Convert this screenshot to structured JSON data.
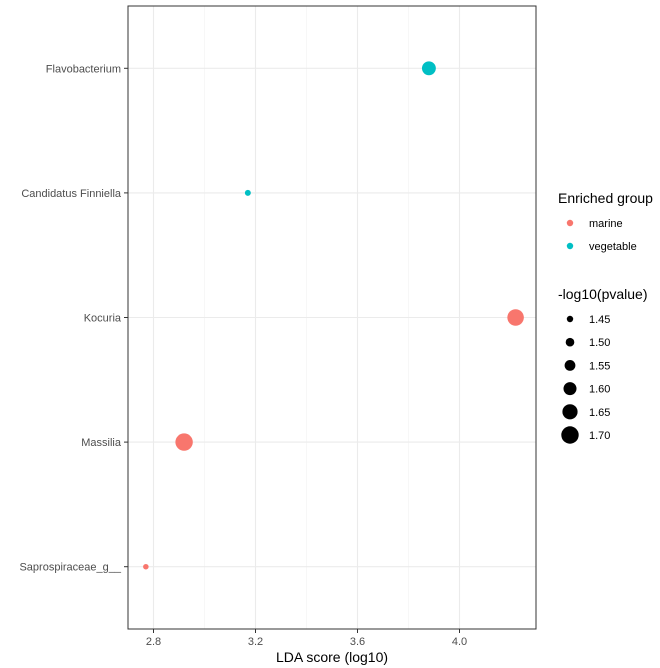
{
  "chart_data": {
    "type": "scatter",
    "title": "",
    "xlabel": "LDA score (log10)",
    "ylabel": "",
    "xlim": [
      2.7,
      4.3
    ],
    "xticks": [
      2.8,
      3.2,
      3.6,
      4.0
    ],
    "xtick_labels": [
      "2.8",
      "3.2",
      "3.6",
      "4.0"
    ],
    "categories": [
      "Flavobacterium",
      "Candidatus Finniella",
      "Kocuria",
      "Massilia",
      "Saprospiraceae_g__"
    ],
    "grid": true,
    "legend_placement": "right",
    "points": [
      {
        "taxon": "Flavobacterium",
        "lda": 3.88,
        "neglog10p": 1.62,
        "group": "vegetable"
      },
      {
        "taxon": "Candidatus Finniella",
        "lda": 3.17,
        "neglog10p": 1.44,
        "group": "vegetable"
      },
      {
        "taxon": "Kocuria",
        "lda": 4.22,
        "neglog10p": 1.68,
        "group": "marine"
      },
      {
        "taxon": "Massilia",
        "lda": 2.92,
        "neglog10p": 1.7,
        "group": "marine"
      },
      {
        "taxon": "Saprospiraceae_g__",
        "lda": 2.77,
        "neglog10p": 1.43,
        "group": "marine"
      }
    ],
    "legend": {
      "color_title": "Enriched group",
      "groups": [
        {
          "label": "marine",
          "color": "#F8766D"
        },
        {
          "label": "vegetable",
          "color": "#00BFC4"
        }
      ],
      "size_title": "-log10(pvalue)",
      "sizes": [
        {
          "label": "1.45",
          "value": 1.45
        },
        {
          "label": "1.50",
          "value": 1.5
        },
        {
          "label": "1.55",
          "value": 1.55
        },
        {
          "label": "1.60",
          "value": 1.6
        },
        {
          "label": "1.65",
          "value": 1.65
        },
        {
          "label": "1.70",
          "value": 1.7
        }
      ]
    }
  }
}
